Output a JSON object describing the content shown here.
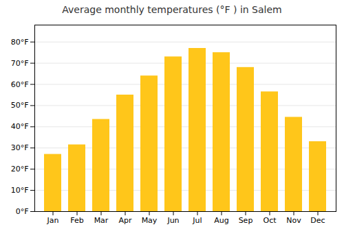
{
  "chart_data": {
    "type": "bar",
    "title": "Average monthly temperatures (°F ) in Salem",
    "categories": [
      "Jan",
      "Feb",
      "Mar",
      "Apr",
      "May",
      "Jun",
      "Jul",
      "Aug",
      "Sep",
      "Oct",
      "Nov",
      "Dec"
    ],
    "values": [
      27,
      31.5,
      43.5,
      55,
      64,
      73,
      77,
      75,
      68,
      56.5,
      44.5,
      33
    ],
    "color": "#FFC61A",
    "ylim": [
      0,
      88
    ],
    "yticks": [
      {
        "value": 0,
        "label": "0°F"
      },
      {
        "value": 10,
        "label": "10°F"
      },
      {
        "value": 20,
        "label": "20°F"
      },
      {
        "value": 30,
        "label": "30°F"
      },
      {
        "value": 40,
        "label": "40°F"
      },
      {
        "value": 50,
        "label": "50°F"
      },
      {
        "value": 60,
        "label": "60°F"
      },
      {
        "value": 70,
        "label": "70°F"
      },
      {
        "value": 80,
        "label": "80°F"
      }
    ],
    "grid": true
  }
}
